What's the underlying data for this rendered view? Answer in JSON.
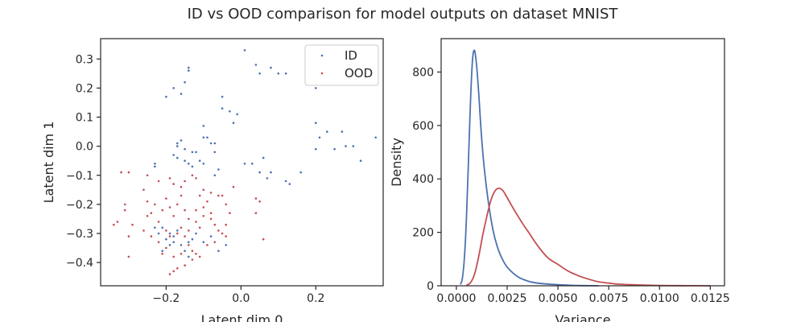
{
  "figure": {
    "suptitle": "ID vs OOD comparison for model outputs on dataset MNIST"
  },
  "colors": {
    "id": "#4c72b0",
    "ood": "#c44e52",
    "axis": "#262626"
  },
  "chart_data": [
    {
      "type": "scatter",
      "xlabel": "Latent dim 0",
      "ylabel": "Latent dim 1",
      "xlim": [
        -0.375,
        0.38
      ],
      "ylim": [
        -0.48,
        0.37
      ],
      "xticks": [
        -0.2,
        0.0,
        0.2
      ],
      "xtick_labels": [
        "−0.2",
        "0.0",
        "0.2"
      ],
      "yticks": [
        -0.4,
        -0.3,
        -0.2,
        -0.1,
        0.0,
        0.1,
        0.2,
        0.3
      ],
      "ytick_labels": [
        "−0.4",
        "−0.3",
        "−0.2",
        "−0.1",
        "0.0",
        "0.1",
        "0.2",
        "0.3"
      ],
      "grid": false,
      "legend": "top-right",
      "series": [
        {
          "name": "ID",
          "color": "#4c72b0",
          "points": [
            [
              0.01,
              0.33
            ],
            [
              0.04,
              0.28
            ],
            [
              0.05,
              0.25
            ],
            [
              0.08,
              0.27
            ],
            [
              0.1,
              0.25
            ],
            [
              0.12,
              0.25
            ],
            [
              0.2,
              0.2
            ],
            [
              -0.14,
              0.27
            ],
            [
              -0.14,
              0.26
            ],
            [
              -0.15,
              0.22
            ],
            [
              -0.18,
              0.2
            ],
            [
              -0.16,
              0.18
            ],
            [
              -0.2,
              0.17
            ],
            [
              -0.05,
              0.17
            ],
            [
              -0.05,
              0.13
            ],
            [
              -0.03,
              0.12
            ],
            [
              -0.01,
              0.11
            ],
            [
              -0.02,
              0.08
            ],
            [
              0.2,
              0.08
            ],
            [
              0.23,
              0.05
            ],
            [
              0.27,
              0.05
            ],
            [
              0.21,
              0.03
            ],
            [
              0.36,
              0.03
            ],
            [
              0.28,
              0.0
            ],
            [
              0.3,
              0.0
            ],
            [
              0.2,
              -0.01
            ],
            [
              0.25,
              -0.01
            ],
            [
              0.32,
              -0.05
            ],
            [
              0.16,
              -0.09
            ],
            [
              0.12,
              -0.12
            ],
            [
              0.13,
              -0.13
            ],
            [
              0.07,
              -0.11
            ],
            [
              0.08,
              -0.09
            ],
            [
              0.06,
              -0.04
            ],
            [
              0.05,
              -0.09
            ],
            [
              0.03,
              -0.06
            ],
            [
              0.01,
              -0.06
            ],
            [
              -0.16,
              0.02
            ],
            [
              -0.17,
              0.01
            ],
            [
              -0.15,
              -0.01
            ],
            [
              -0.13,
              -0.02
            ],
            [
              -0.12,
              -0.02
            ],
            [
              -0.1,
              0.03
            ],
            [
              -0.09,
              0.03
            ],
            [
              -0.1,
              0.07
            ],
            [
              -0.08,
              0.01
            ],
            [
              -0.07,
              0.01
            ],
            [
              -0.07,
              -0.02
            ],
            [
              -0.11,
              -0.05
            ],
            [
              -0.1,
              -0.06
            ],
            [
              -0.14,
              -0.06
            ],
            [
              -0.15,
              -0.05
            ],
            [
              -0.17,
              -0.04
            ],
            [
              -0.17,
              0.0
            ],
            [
              -0.18,
              -0.03
            ],
            [
              -0.13,
              -0.07
            ],
            [
              -0.06,
              -0.08
            ],
            [
              -0.07,
              -0.1
            ],
            [
              -0.23,
              -0.06
            ],
            [
              -0.23,
              -0.07
            ],
            [
              -0.21,
              -0.28
            ],
            [
              -0.22,
              -0.3
            ],
            [
              -0.2,
              -0.32
            ],
            [
              -0.18,
              -0.33
            ],
            [
              -0.19,
              -0.34
            ],
            [
              -0.21,
              -0.36
            ],
            [
              -0.15,
              -0.36
            ],
            [
              -0.14,
              -0.33
            ],
            [
              -0.1,
              -0.33
            ],
            [
              -0.08,
              -0.31
            ],
            [
              -0.12,
              -0.3
            ],
            [
              -0.23,
              -0.28
            ],
            [
              -0.18,
              -0.31
            ],
            [
              -0.16,
              -0.34
            ],
            [
              -0.13,
              -0.32
            ],
            [
              -0.06,
              -0.36
            ],
            [
              -0.04,
              -0.34
            ],
            [
              -0.19,
              -0.3
            ],
            [
              -0.17,
              -0.29
            ],
            [
              -0.14,
              -0.38
            ]
          ]
        },
        {
          "name": "OOD",
          "color": "#c44e52",
          "points": [
            [
              -0.32,
              -0.09
            ],
            [
              -0.3,
              -0.09
            ],
            [
              -0.25,
              -0.1
            ],
            [
              -0.22,
              -0.12
            ],
            [
              -0.19,
              -0.11
            ],
            [
              -0.18,
              -0.13
            ],
            [
              -0.16,
              -0.14
            ],
            [
              -0.15,
              -0.12
            ],
            [
              -0.13,
              -0.1
            ],
            [
              -0.12,
              -0.11
            ],
            [
              -0.1,
              -0.15
            ],
            [
              -0.08,
              -0.16
            ],
            [
              -0.06,
              -0.17
            ],
            [
              -0.05,
              -0.17
            ],
            [
              -0.04,
              -0.2
            ],
            [
              -0.03,
              -0.23
            ],
            [
              0.04,
              -0.18
            ],
            [
              0.05,
              -0.19
            ],
            [
              0.04,
              -0.23
            ],
            [
              0.06,
              -0.32
            ],
            [
              -0.31,
              -0.2
            ],
            [
              -0.31,
              -0.22
            ],
            [
              -0.29,
              -0.27
            ],
            [
              -0.33,
              -0.26
            ],
            [
              -0.34,
              -0.27
            ],
            [
              -0.3,
              -0.31
            ],
            [
              -0.3,
              -0.38
            ],
            [
              -0.26,
              -0.15
            ],
            [
              -0.25,
              -0.19
            ],
            [
              -0.25,
              -0.24
            ],
            [
              -0.23,
              -0.2
            ],
            [
              -0.21,
              -0.22
            ],
            [
              -0.2,
              -0.18
            ],
            [
              -0.19,
              -0.21
            ],
            [
              -0.18,
              -0.24
            ],
            [
              -0.17,
              -0.2
            ],
            [
              -0.16,
              -0.17
            ],
            [
              -0.15,
              -0.22
            ],
            [
              -0.14,
              -0.25
            ],
            [
              -0.12,
              -0.22
            ],
            [
              -0.12,
              -0.26
            ],
            [
              -0.11,
              -0.28
            ],
            [
              -0.1,
              -0.24
            ],
            [
              -0.09,
              -0.19
            ],
            [
              -0.08,
              -0.23
            ],
            [
              -0.07,
              -0.27
            ],
            [
              -0.06,
              -0.29
            ],
            [
              -0.05,
              -0.3
            ],
            [
              -0.04,
              -0.27
            ],
            [
              -0.04,
              -0.31
            ],
            [
              -0.22,
              -0.26
            ],
            [
              -0.2,
              -0.29
            ],
            [
              -0.19,
              -0.31
            ],
            [
              -0.17,
              -0.3
            ],
            [
              -0.16,
              -0.28
            ],
            [
              -0.15,
              -0.31
            ],
            [
              -0.14,
              -0.29
            ],
            [
              -0.13,
              -0.36
            ],
            [
              -0.12,
              -0.37
            ],
            [
              -0.11,
              -0.38
            ],
            [
              -0.13,
              -0.39
            ],
            [
              -0.15,
              -0.41
            ],
            [
              -0.17,
              -0.42
            ],
            [
              -0.18,
              -0.38
            ],
            [
              -0.18,
              -0.43
            ],
            [
              -0.19,
              -0.44
            ],
            [
              -0.2,
              -0.35
            ],
            [
              -0.21,
              -0.37
            ],
            [
              -0.22,
              -0.33
            ],
            [
              -0.24,
              -0.31
            ],
            [
              -0.16,
              -0.37
            ],
            [
              -0.14,
              -0.34
            ],
            [
              -0.09,
              -0.34
            ],
            [
              -0.07,
              -0.33
            ],
            [
              -0.1,
              -0.21
            ],
            [
              -0.11,
              -0.17
            ],
            [
              -0.08,
              -0.25
            ],
            [
              -0.02,
              -0.14
            ],
            [
              -0.24,
              -0.23
            ],
            [
              -0.26,
              -0.29
            ]
          ]
        }
      ]
    },
    {
      "type": "line",
      "xlabel": "Variance",
      "ylabel": "Density",
      "xlim": [
        -0.00075,
        0.0132
      ],
      "ylim": [
        0,
        925
      ],
      "xticks": [
        0.0,
        0.0025,
        0.005,
        0.0075,
        0.01,
        0.0125
      ],
      "xtick_labels": [
        "0.0000",
        "0.0025",
        "0.0050",
        "0.0075",
        "0.0100",
        "0.0125"
      ],
      "yticks": [
        0,
        200,
        400,
        600,
        800
      ],
      "ytick_labels": [
        "0",
        "200",
        "400",
        "600",
        "800"
      ],
      "grid": false,
      "series": [
        {
          "name": "ID",
          "color": "#4c72b0",
          "x": [
            0.0002,
            0.0003,
            0.0004,
            0.0005,
            0.0006,
            0.0007,
            0.0008,
            0.0009,
            0.001,
            0.0011,
            0.0012,
            0.0013,
            0.0014,
            0.0016,
            0.0018,
            0.002,
            0.0022,
            0.0025,
            0.003,
            0.0035,
            0.004,
            0.005,
            0.006,
            0.007
          ],
          "y": [
            5,
            30,
            110,
            260,
            480,
            700,
            850,
            880,
            820,
            720,
            600,
            500,
            420,
            300,
            210,
            150,
            110,
            70,
            35,
            18,
            10,
            4,
            1,
            0
          ]
        },
        {
          "name": "OOD",
          "color": "#c44e52",
          "x": [
            0.0005,
            0.0007,
            0.0009,
            0.0011,
            0.0013,
            0.0015,
            0.0017,
            0.0019,
            0.0021,
            0.0023,
            0.0025,
            0.0028,
            0.0032,
            0.0036,
            0.004,
            0.0045,
            0.005,
            0.0055,
            0.006,
            0.0065,
            0.007,
            0.0075,
            0.008,
            0.009,
            0.01,
            0.011,
            0.012,
            0.0125
          ],
          "y": [
            2,
            12,
            45,
            110,
            190,
            260,
            320,
            355,
            365,
            355,
            330,
            290,
            240,
            195,
            150,
            105,
            80,
            55,
            38,
            25,
            15,
            10,
            6,
            3,
            1,
            0.5,
            0.2,
            0
          ]
        }
      ]
    }
  ]
}
